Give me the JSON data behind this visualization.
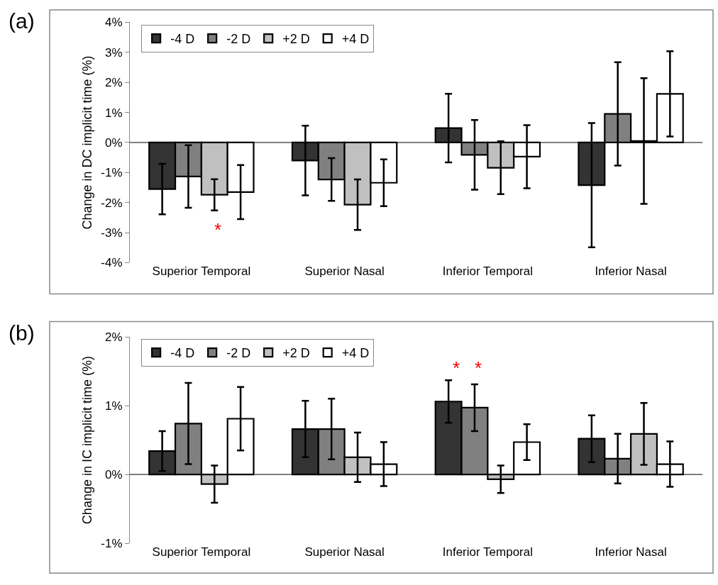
{
  "chart_data": [
    {
      "type": "bar",
      "title": "(a)",
      "ylabel": "Change in DC implicit time (%)",
      "categories": [
        "Superior Temporal",
        "Superior Nasal",
        "Inferior Temporal",
        "Inferior Nasal"
      ],
      "series": [
        {
          "name": "-4 D",
          "color": "#333333",
          "values": [
            -1.55,
            -0.6,
            0.48,
            -1.42
          ],
          "errors": [
            0.84,
            1.16,
            1.14,
            2.07
          ]
        },
        {
          "name": "-2 D",
          "color": "#808080",
          "values": [
            -1.13,
            -1.23,
            -0.41,
            0.95
          ],
          "errors": [
            1.04,
            0.71,
            1.16,
            1.72
          ]
        },
        {
          "name": "+2 D",
          "color": "#c0c0c0",
          "values": [
            -1.74,
            -2.07,
            -0.84,
            0.05
          ],
          "errors": [
            0.52,
            0.84,
            0.88,
            2.09
          ]
        },
        {
          "name": "+4 D",
          "color": "#ffffff",
          "values": [
            -1.65,
            -1.34,
            -0.47,
            1.62
          ],
          "errors": [
            0.9,
            0.78,
            1.05,
            1.42
          ]
        }
      ],
      "ylim": [
        -4,
        4
      ],
      "yticks": [
        {
          "value": -4,
          "label": "-4%"
        },
        {
          "value": -3,
          "label": "-3%"
        },
        {
          "value": -2,
          "label": "-2%"
        },
        {
          "value": -1,
          "label": "-1%"
        },
        {
          "value": 0,
          "label": "0%"
        },
        {
          "value": 1,
          "label": "1%"
        },
        {
          "value": 2,
          "label": "2%"
        },
        {
          "value": 3,
          "label": "3%"
        },
        {
          "value": 4,
          "label": "4%"
        }
      ],
      "grid": false,
      "legend": "top left",
      "ref_lines": [
        {
          "axis": "y",
          "value": 0,
          "color": "#000000"
        }
      ],
      "annotations": [
        "*"
      ]
    },
    {
      "type": "bar",
      "title": "(b)",
      "ylabel": "Change in IC implicit time (%)",
      "categories": [
        "Superior Temporal",
        "Superior Nasal",
        "Inferior Temporal",
        "Inferior Nasal"
      ],
      "series": [
        {
          "name": "-4 D",
          "color": "#333333",
          "values": [
            0.34,
            0.66,
            1.06,
            0.52
          ],
          "errors": [
            0.29,
            0.41,
            0.31,
            0.34
          ]
        },
        {
          "name": "-2 D",
          "color": "#808080",
          "values": [
            0.74,
            0.66,
            0.97,
            0.23
          ],
          "errors": [
            0.59,
            0.44,
            0.34,
            0.36
          ]
        },
        {
          "name": "+2 D",
          "color": "#c0c0c0",
          "values": [
            -0.14,
            0.25,
            -0.07,
            0.59
          ],
          "errors": [
            0.27,
            0.36,
            0.2,
            0.45
          ]
        },
        {
          "name": "+4 D",
          "color": "#ffffff",
          "values": [
            0.81,
            0.15,
            0.47,
            0.15
          ],
          "errors": [
            0.46,
            0.32,
            0.26,
            0.33
          ]
        }
      ],
      "ylim": [
        -1,
        2
      ],
      "yticks": [
        {
          "value": -1,
          "label": "-1%"
        },
        {
          "value": 0,
          "label": "0%"
        },
        {
          "value": 1,
          "label": "1%"
        },
        {
          "value": 2,
          "label": "2%"
        }
      ],
      "grid": false,
      "legend": "top left",
      "ref_lines": [
        {
          "axis": "y",
          "value": 0,
          "color": "#000000"
        }
      ],
      "annotations": [
        "*",
        "*"
      ]
    }
  ]
}
